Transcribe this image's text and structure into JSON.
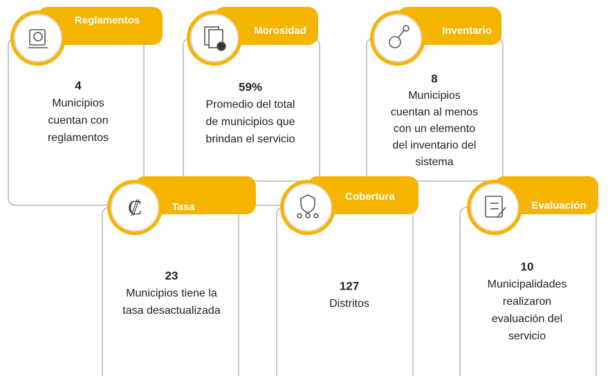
{
  "cards": [
    {
      "title": "Reglamentos",
      "value": "4",
      "description": [
        "Municipios",
        "cuentan con",
        "reglamentos"
      ]
    },
    {
      "title": "Morosidad",
      "value": "59%",
      "description": [
        "Promedio del total",
        "de municipios que",
        "brindan el servicio"
      ]
    },
    {
      "title": "Inventario",
      "value": "8",
      "description": [
        "Municipios",
        "cuentan al menos",
        "con un elemento",
        "del inventario del",
        "sistema"
      ]
    },
    {
      "title": "Tasa",
      "symbol": "₡",
      "value": "23",
      "description": [
        "Municipios tiene la",
        "tasa desactualizada"
      ]
    },
    {
      "title": "Cobertura",
      "value": "127",
      "description": [
        "Distritos"
      ]
    },
    {
      "title": "Evaluación",
      "value": "10",
      "description": [
        "Municipalidades",
        "realizaron",
        "evaluación del",
        "servicio"
      ]
    }
  ]
}
